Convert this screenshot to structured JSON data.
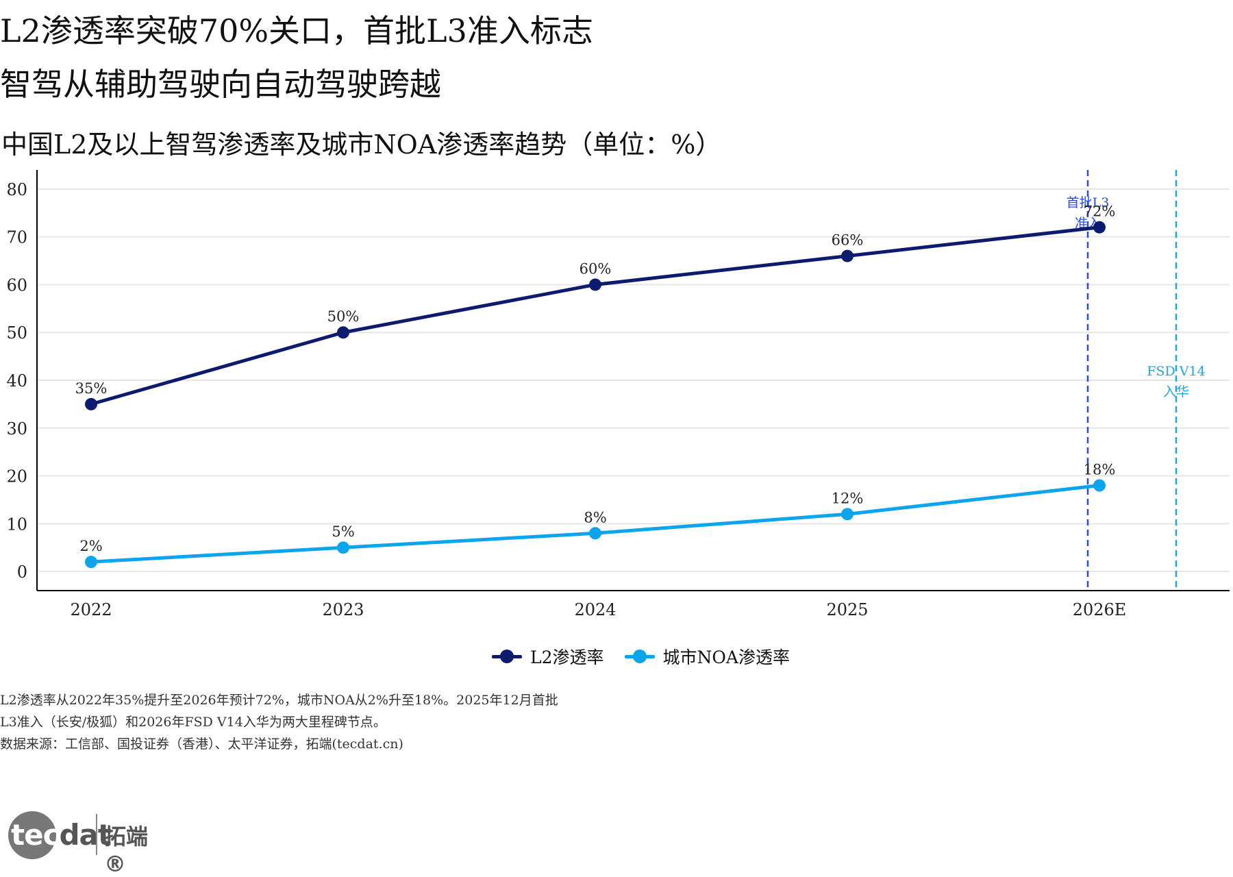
{
  "header": {
    "title_line1": "L2渗透率突破70%关口，首批L3准入标志",
    "title_line2": "智驾从辅助驾驶向自动驾驶跨越",
    "subtitle": "中国L2及以上智驾渗透率及城市NOA渗透率趋势（单位：%）"
  },
  "chart_data": {
    "type": "line",
    "categories": [
      "2022",
      "2023",
      "2024",
      "2025",
      "2026E"
    ],
    "series": [
      {
        "name": "L2渗透率",
        "values": [
          35,
          50,
          60,
          66,
          72
        ],
        "labels": [
          "35%",
          "50%",
          "60%",
          "66%",
          "72%"
        ],
        "color": "#0d1b6e"
      },
      {
        "name": "城市NOA渗透率",
        "values": [
          2,
          5,
          8,
          12,
          18
        ],
        "labels": [
          "2%",
          "5%",
          "8%",
          "12%",
          "18%"
        ],
        "color": "#0aa5ec"
      }
    ],
    "ylim": [
      -4,
      84
    ],
    "yticks": [
      "0",
      "10",
      "20",
      "30",
      "40",
      "50",
      "60",
      "70",
      "80"
    ],
    "grid": "horizontal",
    "annotations": [
      {
        "label_line1": "首批L3",
        "label_line2": "准入",
        "x": 4.0,
        "color": "#2848f2"
      },
      {
        "label_line1": "FSD V14",
        "label_line2": "入华",
        "x": 4.0,
        "color": "#1aa6e0"
      }
    ],
    "legend_position": "bottom"
  },
  "notes": {
    "line1": "L2渗透率从2022年35%提升至2026年预计72%，城市NOA从2%升至18%。2025年12月首批",
    "line2": "L3准入（长安/极狐）和2026年FSD V14入华为两大里程碑节点。",
    "line3": "数据来源：工信部、国投证券（香港）、太平洋证券，拓端(tecdat.cn)"
  },
  "logo": {
    "text_a": "tec",
    "text_b": "dat",
    "brand_cn": "拓端®"
  }
}
